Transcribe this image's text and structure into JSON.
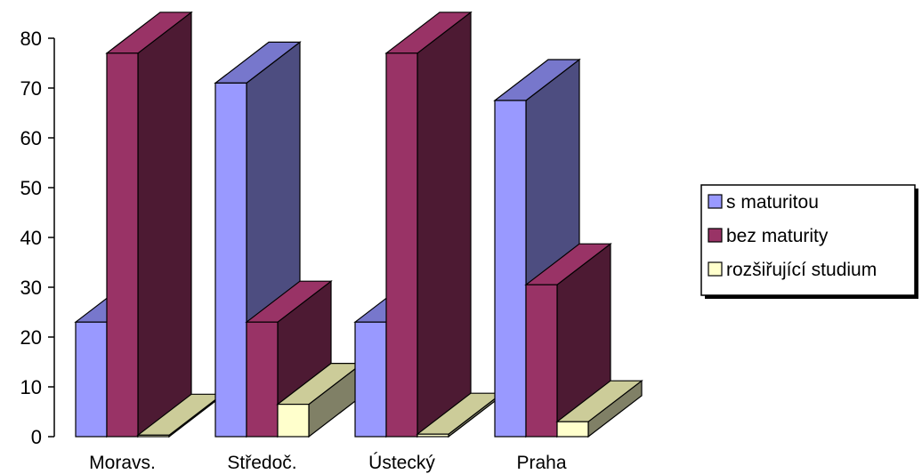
{
  "chart_data": {
    "type": "bar",
    "style": "3d-clustered-column",
    "categories": [
      "Moravs.",
      "Středoč.",
      "Ústecký",
      "Praha"
    ],
    "series": [
      {
        "name": "s maturitou",
        "values": [
          23,
          71,
          23,
          67.5
        ],
        "colors": {
          "front": "#9999FF",
          "side": "#4D4D80",
          "top": "#7777CC"
        }
      },
      {
        "name": "bez maturity",
        "values": [
          77,
          23,
          77,
          30.5
        ],
        "colors": {
          "front": "#993366",
          "side": "#4D1A33",
          "top": "#993366"
        }
      },
      {
        "name": "rozšiřující studium",
        "values": [
          0.3,
          6.5,
          0.5,
          3
        ],
        "colors": {
          "front": "#FFFFCC",
          "side": "#808066",
          "top": "#CCCC99"
        }
      }
    ],
    "ylim": [
      0,
      80
    ],
    "yticks": [
      0,
      10,
      20,
      30,
      40,
      50,
      60,
      70,
      80
    ],
    "legend_position": "right",
    "grid": false
  }
}
